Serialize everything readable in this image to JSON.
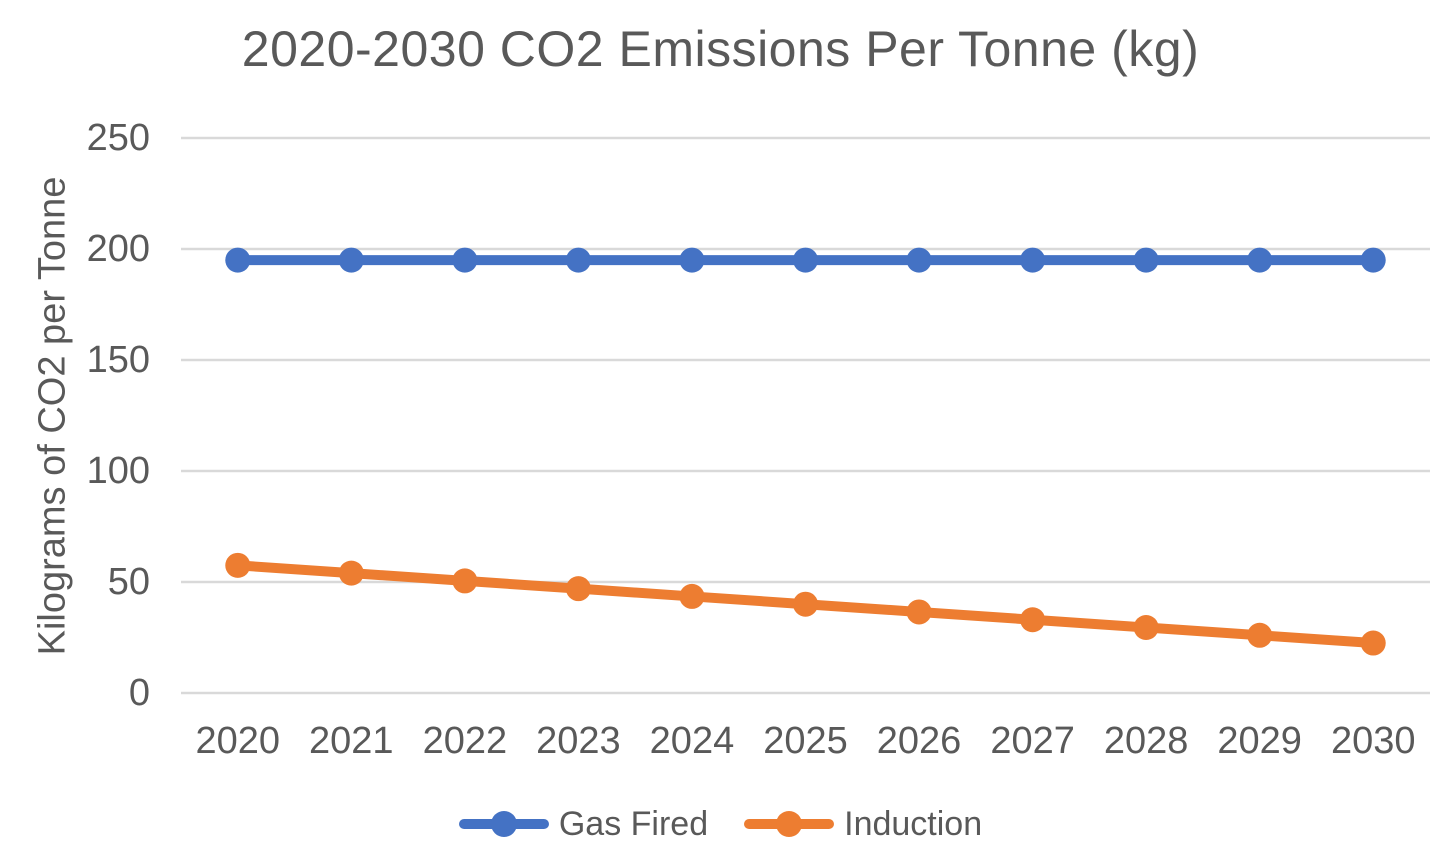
{
  "chart_data": {
    "type": "line",
    "title": "2020-2030 CO2 Emissions Per Tonne (kg)",
    "ylabel": "Kilograms of CO2 per Tonne",
    "xlabel": "",
    "categories": [
      "2020",
      "2021",
      "2022",
      "2023",
      "2024",
      "2025",
      "2026",
      "2027",
      "2028",
      "2029",
      "2030"
    ],
    "series": [
      {
        "name": "Gas Fired",
        "color": "#4472C4",
        "values": [
          195,
          195,
          195,
          195,
          195,
          195,
          195,
          195,
          195,
          195,
          195
        ]
      },
      {
        "name": "Induction",
        "color": "#ED7D31",
        "values": [
          57.5,
          54,
          50.5,
          47,
          43.5,
          40,
          36.5,
          33,
          29.5,
          26,
          22.5
        ]
      }
    ],
    "ylim": [
      0,
      250
    ],
    "yticks": [
      0,
      50,
      100,
      150,
      200,
      250
    ],
    "grid": "horizontal-only",
    "legend_position": "bottom-center",
    "colors": {
      "gridline": "#D9D9D9",
      "text": "#595959",
      "background": "#FFFFFF"
    },
    "marker": "circle"
  }
}
